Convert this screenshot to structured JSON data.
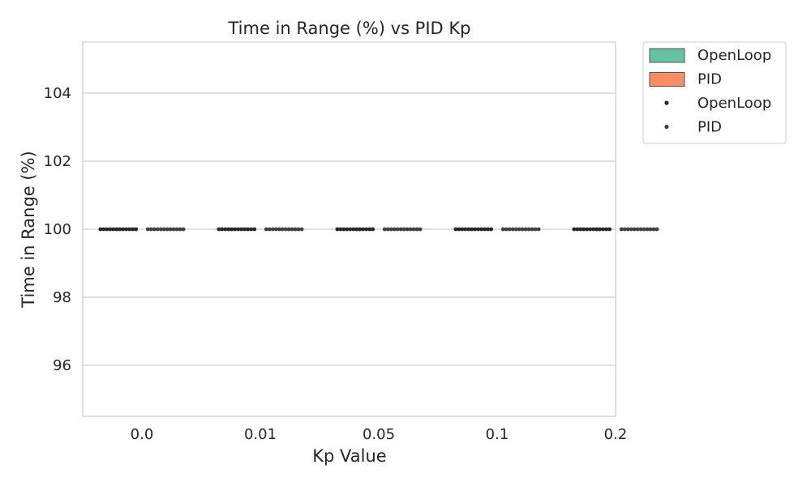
{
  "chart_data": {
    "type": "box",
    "title": "Time in Range (%) vs PID Kp",
    "xlabel": "Kp Value",
    "ylabel": "Time in Range (%)",
    "categories": [
      "0.0",
      "0.01",
      "0.05",
      "0.1",
      "0.2"
    ],
    "ylim": [
      94.5,
      105.5
    ],
    "yticks": [
      96,
      98,
      100,
      102,
      104
    ],
    "grid": true,
    "legend_position": "outside-top-right",
    "series": [
      {
        "name": "OpenLoop",
        "kind": "box",
        "color": "#66c2a5",
        "values": [
          100,
          100,
          100,
          100,
          100
        ]
      },
      {
        "name": "PID",
        "kind": "box",
        "color": "#fc8d62",
        "values": [
          100,
          100,
          100,
          100,
          100
        ]
      },
      {
        "name": "OpenLoop",
        "kind": "points",
        "color": "#262626",
        "point_value": 100,
        "points_per_group": 12
      },
      {
        "name": "PID",
        "kind": "points",
        "color": "#404040",
        "point_value": 100,
        "points_per_group": 12
      }
    ]
  }
}
